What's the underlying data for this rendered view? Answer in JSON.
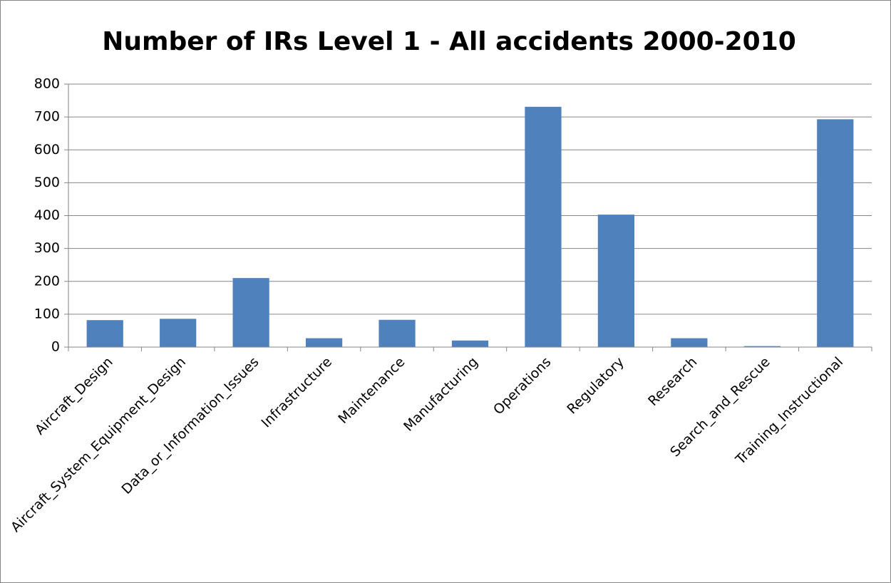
{
  "chart_data": {
    "type": "bar",
    "title": "Number of IRs Level 1  - All accidents 2000-2010",
    "categories": [
      "Aircraft_Design",
      "Aircraft_System_Equipment_Design",
      "Data_or_Information_Issues",
      "Infrastructure",
      "Maintenance",
      "Manufacturing",
      "Operations",
      "Regulatory",
      "Research",
      "Search_and_Rescue",
      "Training_Instructional"
    ],
    "values": [
      82,
      86,
      210,
      27,
      83,
      20,
      731,
      403,
      27,
      3,
      693
    ],
    "color": "#4f81bd",
    "ylim": [
      0,
      800
    ],
    "yticks": [
      0,
      100,
      200,
      300,
      400,
      500,
      600,
      700,
      800
    ],
    "grid": true
  }
}
